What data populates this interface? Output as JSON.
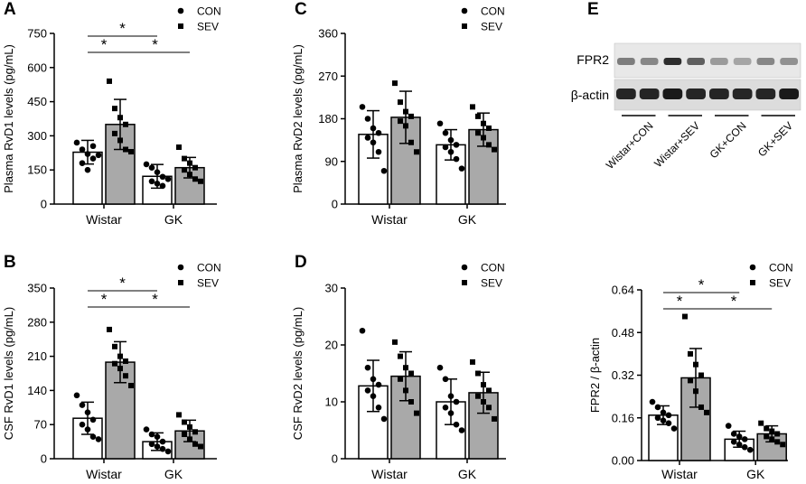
{
  "chart_data": [
    {
      "type": "bar",
      "panel": "A",
      "ylabel": "Plasma RvD1 levels (pg/mL)",
      "ylim": [
        0,
        750
      ],
      "yticks": [
        "0",
        "150",
        "300",
        "450",
        "600",
        "750"
      ],
      "categories": [
        "Wistar",
        "GK"
      ],
      "legend": [
        "CON",
        "SEV"
      ],
      "series": [
        {
          "name": "CON",
          "values": [
            228,
            122
          ],
          "sd": [
            52,
            52
          ],
          "points": [
            [
              270,
              240,
              220,
              200,
              180,
              150,
              255,
              215
            ],
            [
              175,
              160,
              140,
              120,
              100,
              90,
              80,
              110
            ]
          ]
        },
        {
          "name": "SEV",
          "values": [
            350,
            160
          ],
          "sd": [
            110,
            45
          ],
          "points": [
            [
              540,
              420,
              380,
              350,
              310,
              280,
              240,
              230
            ],
            [
              250,
              200,
              180,
              160,
              150,
              130,
              110,
              100
            ]
          ]
        }
      ],
      "significance": [
        {
          "label": "*",
          "from": "Wistar CON",
          "to": "GK CON",
          "level": 1
        },
        {
          "label": "*",
          "from": "Wistar CON",
          "to": "Wistar SEV",
          "level": 0
        },
        {
          "label": "*",
          "from": "Wistar SEV",
          "to": "GK SEV",
          "level": 0
        }
      ]
    },
    {
      "type": "bar",
      "panel": "B",
      "ylabel": "CSF RvD1 levels (pg/mL)",
      "ylim": [
        0,
        350
      ],
      "yticks": [
        "0",
        "70",
        "140",
        "210",
        "280",
        "350"
      ],
      "categories": [
        "Wistar",
        "GK"
      ],
      "legend": [
        "CON",
        "SEV"
      ],
      "series": [
        {
          "name": "CON",
          "values": [
            83,
            35
          ],
          "sd": [
            33,
            18
          ],
          "points": [
            [
              130,
              110,
              95,
              80,
              70,
              60,
              45,
              40
            ],
            [
              60,
              50,
              45,
              35,
              30,
              25,
              20,
              15
            ]
          ]
        },
        {
          "name": "SEV",
          "values": [
            198,
            57
          ],
          "sd": [
            42,
            22
          ],
          "points": [
            [
              265,
              230,
              210,
              200,
              195,
              185,
              170,
              150
            ],
            [
              90,
              75,
              65,
              55,
              50,
              40,
              30,
              25
            ]
          ]
        }
      ],
      "significance": [
        {
          "label": "*",
          "from": "Wistar CON",
          "to": "GK CON",
          "level": 1
        },
        {
          "label": "*",
          "from": "Wistar CON",
          "to": "Wistar SEV",
          "level": 0
        },
        {
          "label": "*",
          "from": "Wistar SEV",
          "to": "GK SEV",
          "level": 0
        }
      ]
    },
    {
      "type": "bar",
      "panel": "C",
      "ylabel": "Plasma RvD2 levels (pg/mL)",
      "ylim": [
        0,
        360
      ],
      "yticks": [
        "0",
        "90",
        "180",
        "270",
        "360"
      ],
      "categories": [
        "Wistar",
        "GK"
      ],
      "legend": [
        "CON",
        "SEV"
      ],
      "series": [
        {
          "name": "CON",
          "values": [
            147,
            125
          ],
          "sd": [
            50,
            32
          ],
          "points": [
            [
              205,
              180,
              160,
              150,
              140,
              130,
              110,
              70
            ],
            [
              170,
              150,
              135,
              125,
              120,
              110,
              95,
              75
            ]
          ]
        },
        {
          "name": "SEV",
          "values": [
            183,
            157
          ],
          "sd": [
            55,
            35
          ],
          "points": [
            [
              255,
              215,
              195,
              185,
              175,
              165,
              130,
              110
            ],
            [
              205,
              185,
              170,
              160,
              150,
              140,
              125,
              115
            ]
          ]
        }
      ],
      "significance": []
    },
    {
      "type": "bar",
      "panel": "D",
      "ylabel": "CSF RvD2 levels (pg/mL)",
      "ylim": [
        0,
        30
      ],
      "yticks": [
        "0",
        "10",
        "20",
        "30"
      ],
      "categories": [
        "Wistar",
        "GK"
      ],
      "legend": [
        "CON",
        "SEV"
      ],
      "series": [
        {
          "name": "CON",
          "values": [
            12.8,
            10
          ],
          "sd": [
            4.5,
            4
          ],
          "points": [
            [
              22.5,
              16,
              14,
              13,
              12,
              11,
              9,
              7
            ],
            [
              16,
              14,
              11,
              10,
              9,
              8,
              6,
              5
            ]
          ]
        },
        {
          "name": "SEV",
          "values": [
            14.5,
            11.6
          ],
          "sd": [
            4.3,
            3.6
          ],
          "points": [
            [
              20.5,
              18,
              16,
              15,
              14,
              12,
              10,
              8
            ],
            [
              17,
              15,
              13,
              12,
              11,
              10,
              9,
              7
            ]
          ]
        }
      ],
      "significance": []
    },
    {
      "type": "bar",
      "panel": "E",
      "ylabel": "FPR2 / β-actin",
      "ylim": [
        0,
        0.64
      ],
      "yticks": [
        "0.00",
        "0.16",
        "0.32",
        "0.48",
        "0.64"
      ],
      "categories": [
        "Wistar",
        "GK"
      ],
      "legend": [
        "CON",
        "SEV"
      ],
      "series": [
        {
          "name": "CON",
          "values": [
            0.17,
            0.08
          ],
          "sd": [
            0.035,
            0.03
          ],
          "points": [
            [
              0.22,
              0.2,
              0.18,
              0.17,
              0.16,
              0.15,
              0.14,
              0.12
            ],
            [
              0.13,
              0.1,
              0.09,
              0.08,
              0.07,
              0.06,
              0.05,
              0.04
            ]
          ]
        },
        {
          "name": "SEV",
          "values": [
            0.31,
            0.1
          ],
          "sd": [
            0.11,
            0.03
          ],
          "points": [
            [
              0.54,
              0.4,
              0.36,
              0.32,
              0.3,
              0.26,
              0.2,
              0.18
            ],
            [
              0.14,
              0.12,
              0.11,
              0.1,
              0.09,
              0.08,
              0.07,
              0.06
            ]
          ]
        }
      ],
      "significance": [
        {
          "label": "*",
          "from": "Wistar CON",
          "to": "GK CON",
          "level": 1
        },
        {
          "label": "*",
          "from": "Wistar CON",
          "to": "Wistar SEV",
          "level": 0
        },
        {
          "label": "*",
          "from": "Wistar SEV",
          "to": "GK SEV",
          "level": 0
        }
      ]
    }
  ],
  "western_blot": {
    "panel": "E",
    "rows": [
      "FPR2",
      "β-actin"
    ],
    "lanes": [
      "Wistar+CON",
      "Wistar+SEV",
      "GK+CON",
      "GK+SEV"
    ],
    "fpr2_intensity": [
      0.55,
      0.5,
      0.95,
      0.7,
      0.4,
      0.35,
      0.5,
      0.45
    ],
    "actin_intensity": [
      0.9,
      0.9,
      0.95,
      0.9,
      0.9,
      0.9,
      0.9,
      0.95
    ]
  }
}
